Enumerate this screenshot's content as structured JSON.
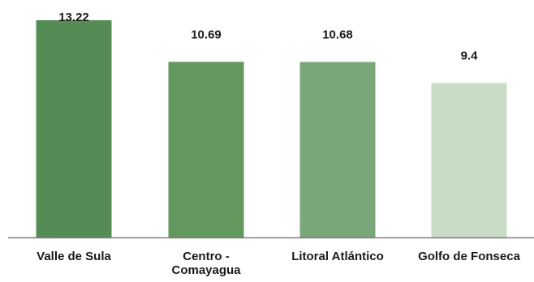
{
  "chart_data": {
    "type": "bar",
    "categories": [
      [
        "Valle de Sula"
      ],
      [
        "Centro -",
        "Comayagua"
      ],
      [
        "Litoral Atlántico"
      ],
      [
        "Golfo de Fonseca"
      ]
    ],
    "values": [
      13.22,
      10.69,
      10.68,
      9.4
    ],
    "data_labels": [
      "13.22",
      "10.69",
      "10.68",
      "9.4"
    ],
    "bar_colors": [
      "#558b55",
      "#63995f",
      "#7aa77a",
      "#c8dcc6"
    ],
    "baseline_color": "#7f7f7f",
    "ylim": [
      0,
      13.22
    ],
    "title": "",
    "xlabel": "",
    "ylabel": "",
    "grid": false,
    "legend": "none"
  }
}
